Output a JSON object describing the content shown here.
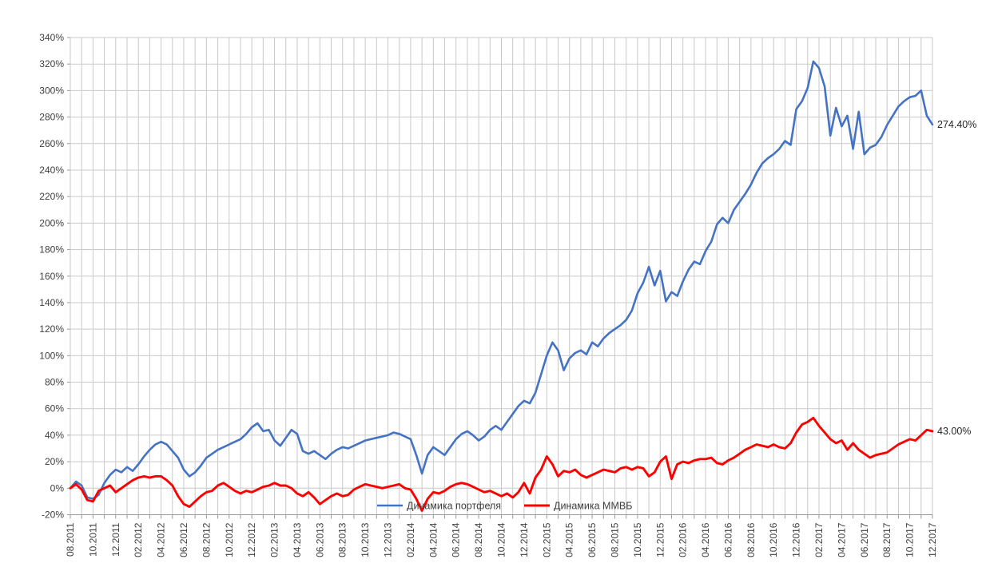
{
  "chart_data": {
    "type": "line",
    "title": "",
    "xlabel": "",
    "ylabel": "",
    "grid": true,
    "legend_position": "bottom-inside",
    "ylim": [
      -20,
      340
    ],
    "y_tick_step": 20,
    "y_tick_labels": [
      "-20%",
      "0%",
      "20%",
      "40%",
      "60%",
      "80%",
      "100%",
      "120%",
      "140%",
      "160%",
      "180%",
      "200%",
      "220%",
      "240%",
      "260%",
      "280%",
      "300%",
      "320%",
      "340%"
    ],
    "x_range_months": 76,
    "x_label_step_months": 2,
    "x_tick_labels": [
      "08.2011",
      "10.2011",
      "12.2011",
      "02.2012",
      "04.2012",
      "06.2012",
      "08.2012",
      "10.2012",
      "12.2012",
      "02.2013",
      "04.2013",
      "06.2013",
      "08.2013",
      "10.2013",
      "12.2013",
      "02.2014",
      "04.2014",
      "06.2014",
      "08.2014",
      "10.2014",
      "12.2014",
      "02.2015",
      "04.2015",
      "06.2015",
      "08.2015",
      "10.2015",
      "12.2015",
      "02.2016",
      "04.2016",
      "06.2016",
      "08.2016",
      "10.2016",
      "12.2016",
      "02.2017",
      "04.2017",
      "06.2017",
      "08.2017",
      "10.2017",
      "12.2017"
    ],
    "point_step_months": 0.5,
    "colors": {
      "grid": "#c9c9c9",
      "axis": "#9a9a9a",
      "text": "#3f3f3f",
      "portfolio": "#4472c4",
      "micex": "#ff0000"
    },
    "series": [
      {
        "key": "portfolio",
        "name": "Динамика портфеля",
        "color": "#4472c4",
        "end_label": "274.40%",
        "end_value": 274.4,
        "values": [
          0,
          5,
          2,
          -7,
          -8,
          -5,
          4,
          10,
          14,
          12,
          16,
          13,
          18,
          24,
          29,
          33,
          35,
          33,
          28,
          23,
          14,
          9,
          12,
          17,
          23,
          26,
          29,
          31,
          33,
          35,
          37,
          41,
          46,
          49,
          43,
          44,
          36,
          32,
          38,
          44,
          41,
          28,
          26,
          28,
          25,
          22,
          26,
          29,
          31,
          30,
          32,
          34,
          36,
          37,
          38,
          39,
          40,
          42,
          41,
          39,
          37,
          25,
          11,
          25,
          31,
          28,
          25,
          31,
          37,
          41,
          43,
          40,
          36,
          39,
          44,
          47,
          44,
          50,
          56,
          62,
          66,
          64,
          72,
          86,
          100,
          110,
          104,
          89,
          98,
          102,
          104,
          101,
          110,
          107,
          113,
          117,
          120,
          123,
          127,
          134,
          147,
          155,
          167,
          153,
          164,
          141,
          148,
          145,
          156,
          165,
          171,
          169,
          179,
          186,
          199,
          204,
          200,
          210,
          216,
          222,
          229,
          238,
          245,
          249,
          252,
          256,
          262,
          259,
          286,
          292,
          302,
          322,
          317,
          303,
          266,
          287,
          273,
          281,
          256,
          284,
          252,
          257,
          259,
          265,
          274,
          281,
          288,
          292,
          295,
          296,
          300,
          281,
          274.4
        ]
      },
      {
        "key": "micex",
        "name": "Динамика ММВБ",
        "color": "#ff0000",
        "end_label": "43.00%",
        "end_value": 43.0,
        "values": [
          0,
          3,
          -1,
          -9,
          -10,
          -2,
          0,
          2,
          -3,
          0,
          3,
          6,
          8,
          9,
          8,
          9,
          9,
          6,
          2,
          -6,
          -12,
          -14,
          -10,
          -6,
          -3,
          -2,
          2,
          4,
          1,
          -2,
          -4,
          -2,
          -3,
          -1,
          1,
          2,
          4,
          2,
          2,
          0,
          -4,
          -6,
          -3,
          -7,
          -12,
          -9,
          -6,
          -4,
          -6,
          -5,
          -1,
          1,
          3,
          2,
          1,
          0,
          1,
          2,
          3,
          0,
          -1,
          -8,
          -17,
          -8,
          -3,
          -4,
          -2,
          1,
          3,
          4,
          3,
          1,
          -1,
          -3,
          -2,
          -4,
          -6,
          -4,
          -7,
          -3,
          4,
          -4,
          8,
          14,
          24,
          18,
          9,
          13,
          12,
          14,
          10,
          8,
          10,
          12,
          14,
          13,
          12,
          15,
          16,
          14,
          16,
          15,
          9,
          12,
          20,
          24,
          7,
          18,
          20,
          19,
          21,
          22,
          22,
          23,
          19,
          18,
          21,
          23,
          26,
          29,
          31,
          33,
          32,
          31,
          33,
          31,
          30,
          34,
          42,
          48,
          50,
          53,
          47,
          42,
          37,
          34,
          36,
          29,
          34,
          29,
          26,
          23,
          25,
          26,
          27,
          30,
          33,
          35,
          37,
          36,
          40,
          44,
          43
        ]
      }
    ]
  }
}
